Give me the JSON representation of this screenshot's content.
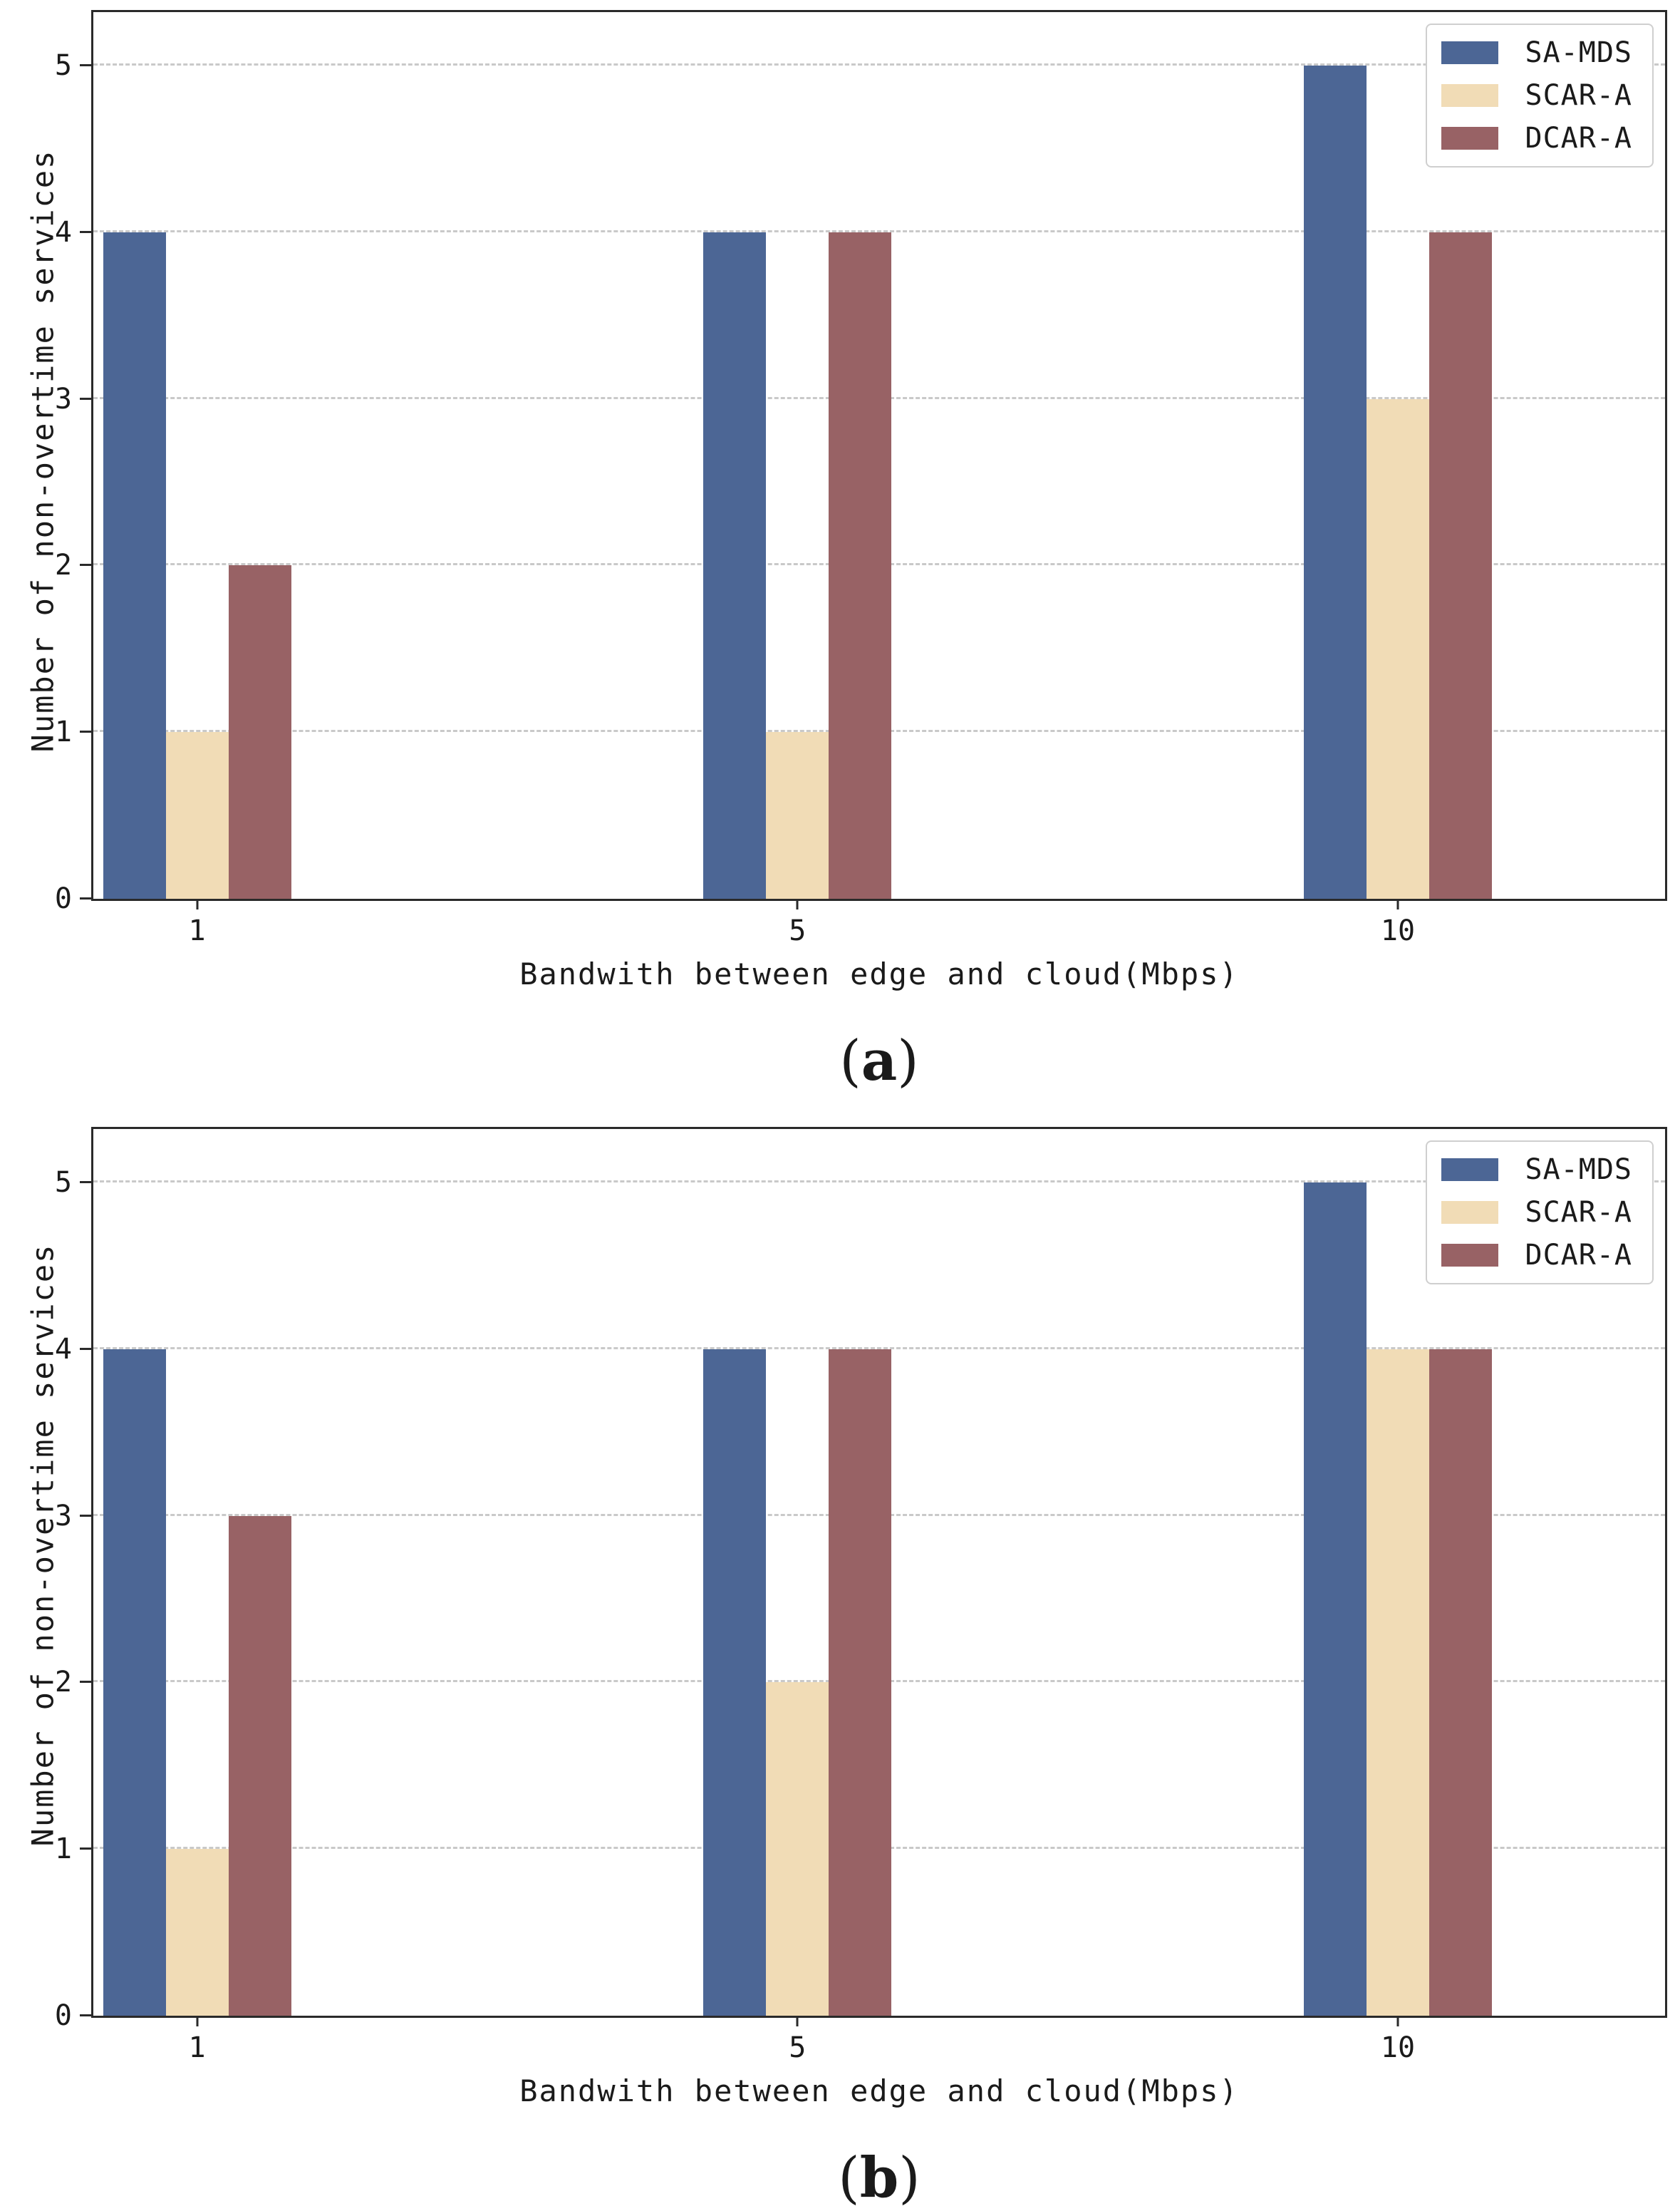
{
  "page": {
    "background": "#ffffff"
  },
  "panels": [
    {
      "caption_open": "(",
      "caption_letter": "a",
      "caption_close": ")"
    },
    {
      "caption_open": "(",
      "caption_letter": "b",
      "caption_close": ")"
    }
  ],
  "colors": {
    "sa_mds": "#4c6695",
    "scar_a": "#f1dcb6",
    "dcar_a": "#986265",
    "gridline": "#c9c9c9",
    "frame": "#2a2a2a"
  },
  "chart_data": [
    {
      "type": "bar",
      "panel": "(a)",
      "title": "",
      "categories": [
        "1",
        "5",
        "10"
      ],
      "series": [
        {
          "name": "SA-MDS",
          "color": "#4c6695",
          "values": [
            4,
            4,
            5
          ]
        },
        {
          "name": "SCAR-A",
          "color": "#f1dcb6",
          "values": [
            1,
            1,
            3
          ]
        },
        {
          "name": "DCAR-A",
          "color": "#986265",
          "values": [
            2,
            4,
            4
          ]
        }
      ],
      "xlabel": "Bandwith between edge and cloud(Mbps)",
      "ylabel": "Number of non-overtime services",
      "ylim": [
        0,
        5.32
      ],
      "yticks": [
        0,
        1,
        2,
        3,
        4,
        5
      ],
      "grid": "horizontal-dashed",
      "legend_position": "upper-right"
    },
    {
      "type": "bar",
      "panel": "(b)",
      "title": "",
      "categories": [
        "1",
        "5",
        "10"
      ],
      "series": [
        {
          "name": "SA-MDS",
          "color": "#4c6695",
          "values": [
            4,
            4,
            5
          ]
        },
        {
          "name": "SCAR-A",
          "color": "#f1dcb6",
          "values": [
            1,
            2,
            4
          ]
        },
        {
          "name": "DCAR-A",
          "color": "#986265",
          "values": [
            3,
            4,
            4
          ]
        }
      ],
      "xlabel": "Bandwith between edge and cloud(Mbps)",
      "ylabel": "Number of non-overtime services",
      "ylim": [
        0,
        5.32
      ],
      "yticks": [
        0,
        1,
        2,
        3,
        4,
        5
      ],
      "grid": "horizontal-dashed",
      "legend_position": "upper-right"
    }
  ]
}
